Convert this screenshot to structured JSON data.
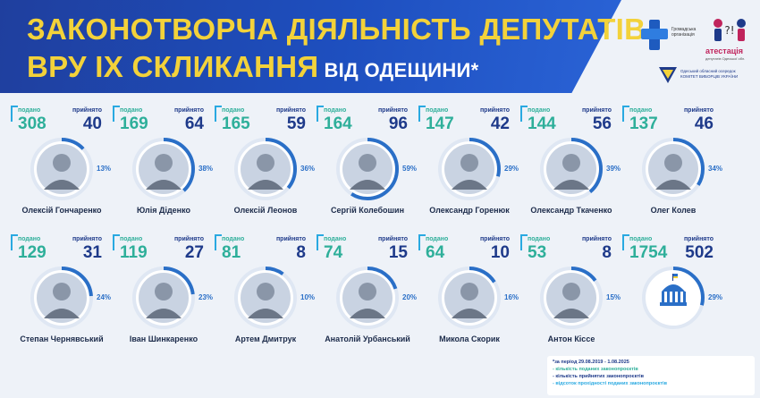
{
  "header": {
    "title_line1": "ЗАКОНОТВОРЧА ДІЯЛЬНІСТЬ ДЕПУТАТІВ",
    "title_line2": "ВРУ IX СКЛИКАННЯ",
    "title_line2_small": "ВІД ОДЕЩИНИ*"
  },
  "logos": {
    "org_text": "Громадська організація",
    "attestation_text": "атестація",
    "attestation_sub": "депутатів Одеської обл.",
    "bottom_text": "Одеський обласний осередок КОМІТЕТ ВИБОРЦІВ УКРАЇНИ"
  },
  "labels": {
    "submitted": "подано",
    "accepted": "прийнято"
  },
  "colors": {
    "submitted": "#2eaf9a",
    "accepted": "#1e3a8a",
    "ring_share": "#2a6fc7",
    "ring_base": "#dfe7f3"
  },
  "deputies": [
    {
      "name": "Олексій Гончаренко",
      "submitted": "308",
      "accepted": "40",
      "percent": "13%",
      "share": 0.13
    },
    {
      "name": "Юлія Діденко",
      "submitted": "169",
      "accepted": "64",
      "percent": "38%",
      "share": 0.38
    },
    {
      "name": "Олексій Леонов",
      "submitted": "165",
      "accepted": "59",
      "percent": "36%",
      "share": 0.36
    },
    {
      "name": "Сергій Колебошин",
      "submitted": "164",
      "accepted": "96",
      "percent": "59%",
      "share": 0.59
    },
    {
      "name": "Олександр Горенюк",
      "submitted": "147",
      "accepted": "42",
      "percent": "29%",
      "share": 0.29
    },
    {
      "name": "Олександр Ткаченко",
      "submitted": "144",
      "accepted": "56",
      "percent": "39%",
      "share": 0.39
    },
    {
      "name": "Олег Колев",
      "submitted": "137",
      "accepted": "46",
      "percent": "34%",
      "share": 0.34
    },
    {
      "name": "Степан Чернявський",
      "submitted": "129",
      "accepted": "31",
      "percent": "24%",
      "share": 0.24
    },
    {
      "name": "Іван Шинкаренко",
      "submitted": "119",
      "accepted": "27",
      "percent": "23%",
      "share": 0.23
    },
    {
      "name": "Артем Дмитрук",
      "submitted": "81",
      "accepted": "8",
      "percent": "10%",
      "share": 0.1
    },
    {
      "name": "Анатолій Урбанський",
      "submitted": "74",
      "accepted": "15",
      "percent": "20%",
      "share": 0.2
    },
    {
      "name": "Микола Скорик",
      "submitted": "64",
      "accepted": "10",
      "percent": "16%",
      "share": 0.16
    },
    {
      "name": "Антон Кіссе",
      "submitted": "53",
      "accepted": "8",
      "percent": "15%",
      "share": 0.15
    },
    {
      "name": "",
      "submitted": "1754",
      "accepted": "502",
      "percent": "29%",
      "share": 0.29,
      "total": true
    }
  ],
  "footnote": {
    "period": "*за період 29.08.2019 - 1.08.2025",
    "submitted_legend": "- кількість поданих законопроєктів",
    "accepted_legend": "- кількість прийнятих законопроєктів",
    "percent_legend": "- відсоток прохідності поданих законопроєктів"
  }
}
